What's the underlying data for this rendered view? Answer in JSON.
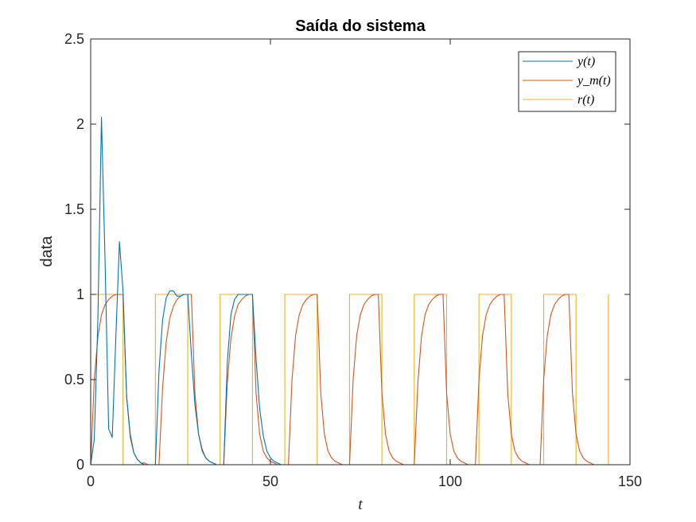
{
  "chart_data": {
    "type": "line",
    "title": "Saída do sistema",
    "xlabel": "t",
    "ylabel": "data",
    "xlim": [
      0,
      150
    ],
    "ylim": [
      0,
      2.5
    ],
    "xticks": [
      0,
      50,
      100,
      150
    ],
    "xtick_labels": [
      "0",
      "50",
      "100",
      "150"
    ],
    "yticks": [
      0,
      0.5,
      1,
      1.5,
      2,
      2.5
    ],
    "ytick_labels": [
      "0",
      "0.5",
      "1",
      "1.5",
      "2",
      "2.5"
    ],
    "grid": false,
    "legend_position": "top-right",
    "series": [
      {
        "name": "y(t)",
        "color": "#0072BD",
        "x": [
          0,
          1,
          2,
          3,
          4,
          5,
          6,
          7,
          8,
          9,
          10,
          11,
          12,
          13,
          14,
          15,
          16,
          17,
          18,
          19,
          20,
          21,
          22,
          23,
          24,
          25,
          26,
          27,
          28,
          29,
          30,
          31,
          32,
          33,
          34,
          35,
          36,
          37,
          38,
          39,
          40,
          41,
          42,
          43,
          44,
          45,
          46,
          47,
          48,
          49,
          50,
          51,
          52,
          53
        ],
        "y": [
          0,
          0.15,
          0.85,
          2.04,
          1.2,
          0.21,
          0.16,
          0.75,
          1.31,
          1.02,
          0.4,
          0.18,
          0.07,
          0.03,
          0.01,
          0,
          0,
          0,
          0,
          0.55,
          0.85,
          0.98,
          1.02,
          1.02,
          0.99,
          0.99,
          1.0,
          1.0,
          0.65,
          0.35,
          0.18,
          0.09,
          0.04,
          0.02,
          0.01,
          0,
          0,
          0,
          0.6,
          0.88,
          0.97,
          1.0,
          1.0,
          1.0,
          1.0,
          1.0,
          0.62,
          0.33,
          0.17,
          0.08,
          0.04,
          0.02,
          0.01,
          0
        ]
      },
      {
        "name": "y_m(t)",
        "color": "#D95319",
        "x": [
          0,
          1,
          2,
          3,
          4,
          5,
          6,
          7,
          8,
          9,
          10,
          11,
          12,
          13,
          14,
          15,
          16,
          17,
          18,
          19,
          20,
          21,
          22,
          23,
          24,
          25,
          26,
          27,
          28,
          29,
          30,
          31,
          32,
          33,
          34,
          35,
          36,
          37,
          38,
          39,
          40,
          41,
          42,
          43,
          44,
          45,
          46,
          47,
          48,
          49,
          50,
          51,
          52,
          53,
          54,
          55,
          56,
          57,
          58,
          59,
          60,
          61,
          62,
          63,
          64,
          65,
          66,
          67,
          68,
          69,
          70,
          71,
          72,
          73,
          74,
          75,
          76,
          77,
          78,
          79,
          80,
          81,
          82,
          83,
          84,
          85,
          86,
          87,
          88,
          89,
          90,
          91,
          92,
          93,
          94,
          95,
          96,
          97,
          98,
          99,
          100,
          101,
          102,
          103,
          104,
          105,
          106,
          107,
          108,
          109,
          110,
          111,
          112,
          113,
          114,
          115,
          116,
          117,
          118,
          119,
          120,
          121,
          122,
          123,
          124,
          125,
          126,
          127,
          128,
          129,
          130,
          131,
          132,
          133,
          134,
          135,
          136,
          137,
          138,
          139,
          140,
          141,
          142,
          143,
          144
        ],
        "y": [
          0,
          0.5,
          0.75,
          0.88,
          0.94,
          0.97,
          0.99,
          1.0,
          1.0,
          1.0,
          0.4,
          0.16,
          0.07,
          0.03,
          0.01,
          0.01,
          0,
          0,
          0,
          0,
          0.45,
          0.72,
          0.86,
          0.93,
          0.97,
          0.99,
          1.0,
          1.0,
          1.0,
          0.42,
          0.18,
          0.08,
          0.04,
          0.02,
          0.01,
          0,
          0,
          0,
          0.48,
          0.74,
          0.87,
          0.94,
          0.97,
          0.99,
          1.0,
          1.0,
          0.42,
          0.18,
          0.08,
          0.04,
          0.02,
          0.01,
          0,
          0,
          0,
          0,
          0.5,
          0.76,
          0.88,
          0.94,
          0.97,
          0.99,
          1.0,
          1.0,
          0.42,
          0.18,
          0.08,
          0.04,
          0.02,
          0.01,
          0,
          0,
          0,
          0.5,
          0.76,
          0.88,
          0.94,
          0.97,
          0.99,
          1.0,
          1.0,
          0.42,
          0.18,
          0.08,
          0.04,
          0.02,
          0.01,
          0,
          0,
          0,
          0,
          0.48,
          0.75,
          0.88,
          0.94,
          0.97,
          0.99,
          1.0,
          1.0,
          0.42,
          0.18,
          0.08,
          0.04,
          0.02,
          0.01,
          0,
          0,
          0,
          0.5,
          0.76,
          0.88,
          0.94,
          0.97,
          0.99,
          1.0,
          1.0,
          0.42,
          0.18,
          0.08,
          0.04,
          0.02,
          0.01,
          0,
          0,
          0,
          0,
          0.5,
          0.76,
          0.88,
          0.94,
          0.97,
          0.99,
          1.0,
          1.0,
          0.42,
          0.18,
          0.08,
          0.04,
          0.02,
          0.01,
          0,
          0,
          0,
          0,
          0
        ]
      },
      {
        "name": "r(t)",
        "color": "#EDB120",
        "x": [
          0,
          0,
          9,
          9,
          18,
          18,
          27,
          27,
          36,
          36,
          45,
          45,
          54,
          54,
          63,
          63,
          72,
          72,
          81,
          81,
          90,
          90,
          99,
          99,
          108,
          108,
          117,
          117,
          126,
          126,
          135,
          135,
          144,
          144
        ],
        "y": [
          0,
          1,
          1,
          0,
          0,
          1,
          1,
          0,
          0,
          1,
          1,
          0,
          0,
          1,
          1,
          0,
          0,
          1,
          1,
          0,
          0,
          1,
          1,
          0,
          0,
          1,
          1,
          0,
          0,
          1,
          1,
          0,
          0,
          1
        ]
      }
    ]
  }
}
